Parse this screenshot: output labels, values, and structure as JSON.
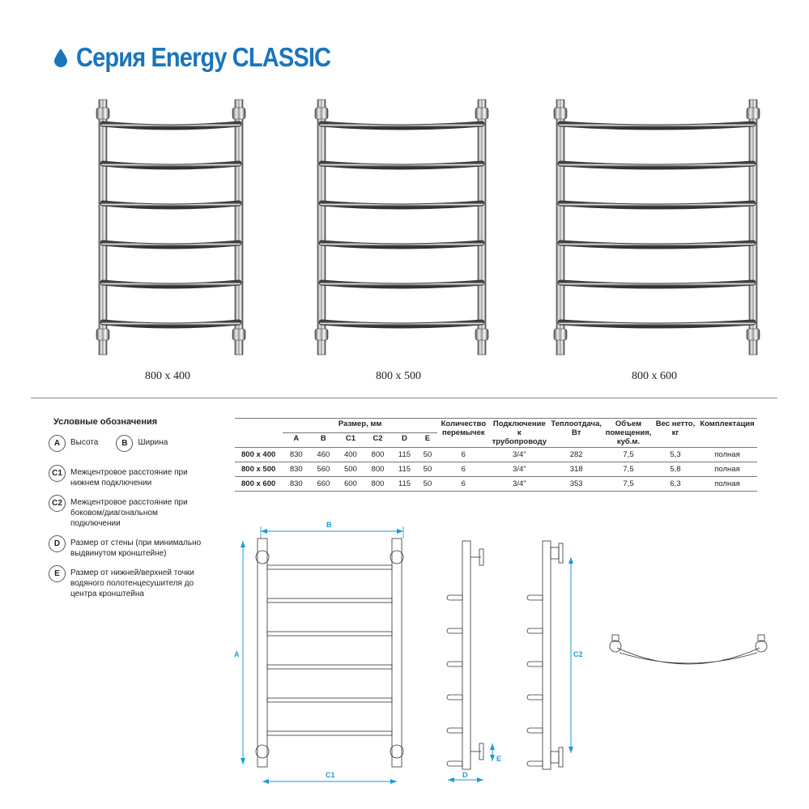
{
  "header": {
    "title": "Серия Energy CLASSIC",
    "icon": "water-drop-icon",
    "accent_color": "#1b75bb"
  },
  "products": [
    {
      "label": "800 x 400"
    },
    {
      "label": "800 x 500"
    },
    {
      "label": "800 x 600"
    }
  ],
  "legend": {
    "title": "Условные обозначения",
    "items": [
      {
        "key": "A",
        "text": "Высота"
      },
      {
        "key": "B",
        "text": "Ширина"
      },
      {
        "key": "C1",
        "text": "Межцентровое расстояние при нижнем подключении"
      },
      {
        "key": "C2",
        "text": "Межцентровое расстояние при боковом/диагональном подключении"
      },
      {
        "key": "D",
        "text": "Размер от стены (при минимально выдвинутом кронштейне)"
      },
      {
        "key": "E",
        "text": "Размер от нижней/верхней точки водяного полотенцесушителя до центра кронштейна"
      }
    ]
  },
  "table": {
    "size_group": "Размер, мм",
    "size_cols": [
      "A",
      "B",
      "C1",
      "C2",
      "D",
      "E"
    ],
    "cols": [
      "Количество перемычек",
      "Подключение к трубопроводу",
      "Теплоотдача, Вт",
      "Объем помещения, куб.м.",
      "Вес нетто, кг",
      "Комплектация"
    ],
    "rows": [
      {
        "model": "800 x 400",
        "A": "830",
        "B": "460",
        "C1": "400",
        "C2": "800",
        "D": "115",
        "E": "50",
        "bars": "6",
        "conn": "3/4\"",
        "heat": "282",
        "volume": "7,5",
        "weight": "5,3",
        "kit": "полная"
      },
      {
        "model": "800 x 500",
        "A": "830",
        "B": "560",
        "C1": "500",
        "C2": "800",
        "D": "115",
        "E": "50",
        "bars": "6",
        "conn": "3/4\"",
        "heat": "318",
        "volume": "7,5",
        "weight": "5,8",
        "kit": "полная"
      },
      {
        "model": "800 x 600",
        "A": "830",
        "B": "660",
        "C1": "600",
        "C2": "800",
        "D": "115",
        "E": "50",
        "bars": "6",
        "conn": "3/4\"",
        "heat": "353",
        "volume": "7,5",
        "weight": "6,3",
        "kit": "полная"
      }
    ]
  },
  "drawing": {
    "labels": {
      "A": "A",
      "B": "B",
      "C1": "C1",
      "C2": "C2",
      "D": "D",
      "E": "E"
    },
    "dim_color": "#1b9ad6"
  }
}
